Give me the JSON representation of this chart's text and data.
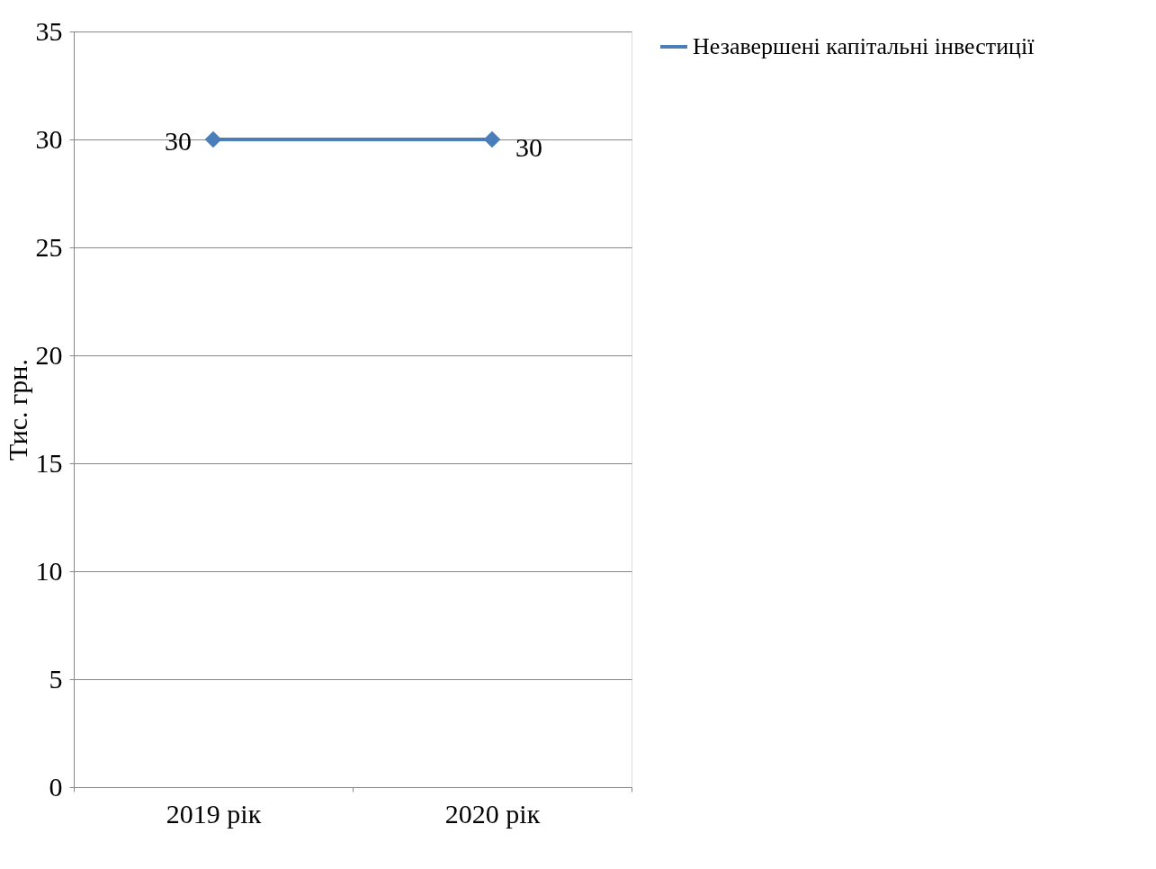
{
  "chart_data": {
    "type": "line",
    "ylabel": "Тис. грн.",
    "categories": [
      "2019 рік",
      "2020 рік"
    ],
    "series": [
      {
        "name": "Незавершені капітальні інвестиції",
        "color": "#4a7ebb",
        "values": [
          30,
          30
        ]
      }
    ],
    "ylim": [
      0,
      35
    ],
    "yticks": [
      0,
      5,
      10,
      15,
      20,
      25,
      30,
      35
    ],
    "grid": "y",
    "legend": "right",
    "marker": "diamond",
    "line_style": "solid",
    "data_labels": true
  }
}
